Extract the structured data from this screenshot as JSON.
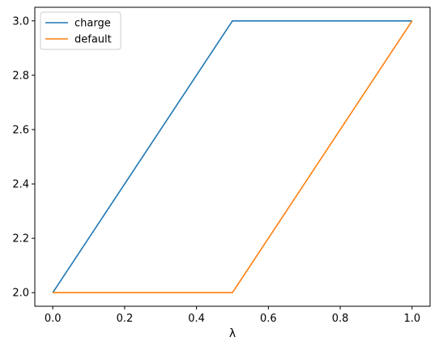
{
  "chart_data": {
    "type": "line",
    "title": "",
    "xlabel": "λ",
    "ylabel": "",
    "xlim": [
      -0.05,
      1.05
    ],
    "ylim": [
      1.95,
      3.05
    ],
    "xticks": [
      0.0,
      0.2,
      0.4,
      0.6,
      0.8,
      1.0
    ],
    "xtick_labels": [
      "0.0",
      "0.2",
      "0.4",
      "0.6",
      "0.8",
      "1.0"
    ],
    "yticks": [
      2.0,
      2.2,
      2.4,
      2.6,
      2.8,
      3.0
    ],
    "ytick_labels": [
      "2.0",
      "2.2",
      "2.4",
      "2.6",
      "2.8",
      "3.0"
    ],
    "grid": false,
    "legend_position": "top-left",
    "series": [
      {
        "name": "charge",
        "color": "#1f77b4",
        "x": [
          0.0,
          0.5,
          1.0
        ],
        "y": [
          2.0,
          3.0,
          3.0
        ]
      },
      {
        "name": "default",
        "color": "#ff7f0e",
        "x": [
          0.0,
          0.5,
          1.0
        ],
        "y": [
          2.0,
          2.0,
          3.0
        ]
      }
    ]
  }
}
